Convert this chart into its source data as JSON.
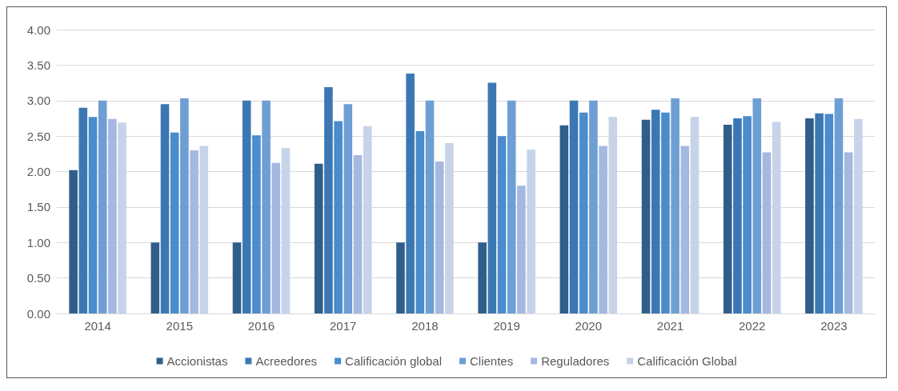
{
  "chart_data": {
    "type": "bar",
    "categories": [
      "2014",
      "2015",
      "2016",
      "2017",
      "2018",
      "2019",
      "2020",
      "2021",
      "2022",
      "2023"
    ],
    "series": [
      {
        "name": "Accionistas",
        "color": "#305e8a",
        "values": [
          2.02,
          1.0,
          1.0,
          2.11,
          1.0,
          1.0,
          2.65,
          2.73,
          2.66,
          2.75
        ]
      },
      {
        "name": "Acreedores",
        "color": "#3b78b3",
        "values": [
          2.9,
          2.95,
          3.0,
          3.19,
          3.38,
          3.25,
          3.0,
          2.87,
          2.75,
          2.82
        ]
      },
      {
        "name": "Calificación global",
        "color": "#4a8ccc",
        "values": [
          2.77,
          2.55,
          2.51,
          2.71,
          2.57,
          2.5,
          2.83,
          2.83,
          2.78,
          2.81
        ]
      },
      {
        "name": "Clientes",
        "color": "#6e9fd4",
        "values": [
          3.0,
          3.03,
          3.0,
          2.95,
          3.0,
          3.0,
          3.0,
          3.03,
          3.03,
          3.03
        ]
      },
      {
        "name": "Reguladores",
        "color": "#a4b8e0",
        "values": [
          2.74,
          2.3,
          2.12,
          2.23,
          2.14,
          1.8,
          2.36,
          2.36,
          2.27,
          2.27
        ]
      },
      {
        "name": "Calificación Global",
        "color": "#c6d3e9",
        "values": [
          2.69,
          2.36,
          2.33,
          2.64,
          2.4,
          2.31,
          2.77,
          2.77,
          2.7,
          2.74
        ]
      }
    ],
    "ylim": [
      0,
      4
    ],
    "yticks": [
      {
        "value": 0,
        "label": "0.00"
      },
      {
        "value": 0.5,
        "label": "0.50"
      },
      {
        "value": 1,
        "label": "1.00"
      },
      {
        "value": 1.5,
        "label": "1.50"
      },
      {
        "value": 2,
        "label": "2.00"
      },
      {
        "value": 2.5,
        "label": "2.50"
      },
      {
        "value": 3,
        "label": "3.00"
      },
      {
        "value": 3.5,
        "label": "3.50"
      },
      {
        "value": 4,
        "label": "4.00"
      }
    ],
    "grid": "y",
    "legend": "bottom"
  }
}
